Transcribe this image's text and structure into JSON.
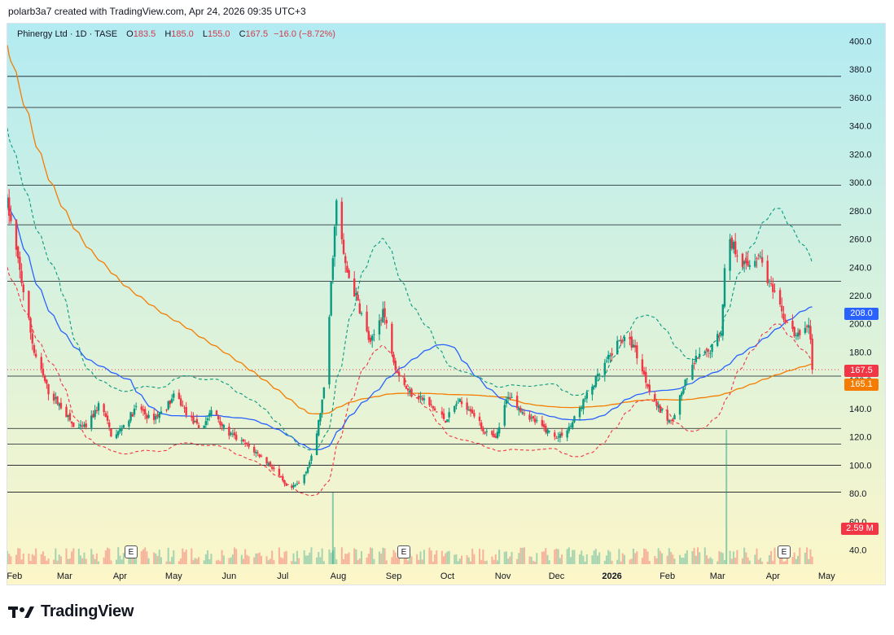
{
  "header": {
    "caption": "polarb3a7 created with TradingView.com, Apr 24, 2026 09:35 UTC+3"
  },
  "legend": {
    "symbol": "Phinergy Ltd · 1D · TASE",
    "open_label": "O",
    "open": "183.5",
    "high_label": "H",
    "high": "185.0",
    "low_label": "L",
    "low": "155.0",
    "close_label": "C",
    "close": "167.5",
    "change": "−16.0 (−8.72%)"
  },
  "tags": {
    "blue_ma": "208.0",
    "last_price": "167.5",
    "orange_ma": "165.1",
    "volume": "2.59 M"
  },
  "footer": {
    "brand": "TradingView"
  },
  "colors": {
    "up": "#089981",
    "down": "#f23645",
    "blue_ma": "#2962ff",
    "orange_ma": "#f57c00",
    "green_band": "#089981",
    "red_band": "#f23645",
    "last_price": "#f23645",
    "orange_tag": "#f57c00",
    "blue_tag": "#2962ff",
    "volume_tag": "#f23645"
  },
  "earnings_markers": [
    "E",
    "E",
    "E"
  ],
  "chart_data": {
    "type": "candlestick",
    "y_axis": {
      "min": 30,
      "max": 410,
      "ticks": [
        40,
        60,
        80,
        100,
        120,
        140,
        160,
        180,
        200,
        220,
        240,
        260,
        280,
        300,
        320,
        340,
        360,
        380,
        400
      ],
      "position": "right"
    },
    "x_labels": [
      "Feb",
      "Mar",
      "Apr",
      "May",
      "Jun",
      "Jul",
      "Aug",
      "Sep",
      "Oct",
      "Nov",
      "Dec",
      "2026",
      "Feb",
      "Mar",
      "Apr",
      "May"
    ],
    "x_label_dates": [
      "2025-02-01",
      "2025-03-01",
      "2025-04-01",
      "2025-05-01",
      "2025-06-01",
      "2025-07-01",
      "2025-08-01",
      "2025-09-01",
      "2025-10-01",
      "2025-11-01",
      "2025-12-01",
      "2026-01-01",
      "2026-02-01",
      "2026-03-01",
      "2026-04-01",
      "2026-05-01"
    ],
    "x_range": [
      "2025-01-28",
      "2026-05-05"
    ],
    "horizontal_levels": [
      375,
      353,
      298,
      270,
      230,
      163,
      126,
      115,
      100,
      81
    ],
    "close_series": [
      [
        "2025-01-28",
        285
      ],
      [
        "2025-02-05",
        230
      ],
      [
        "2025-02-12",
        180
      ],
      [
        "2025-02-20",
        152
      ],
      [
        "2025-02-28",
        140
      ],
      [
        "2025-03-07",
        125
      ],
      [
        "2025-03-14",
        128
      ],
      [
        "2025-03-21",
        145
      ],
      [
        "2025-03-28",
        118
      ],
      [
        "2025-04-04",
        130
      ],
      [
        "2025-04-11",
        142
      ],
      [
        "2025-04-18",
        132
      ],
      [
        "2025-04-25",
        138
      ],
      [
        "2025-05-02",
        150
      ],
      [
        "2025-05-09",
        135
      ],
      [
        "2025-05-16",
        125
      ],
      [
        "2025-05-23",
        140
      ],
      [
        "2025-05-30",
        124
      ],
      [
        "2025-06-06",
        118
      ],
      [
        "2025-06-13",
        112
      ],
      [
        "2025-06-20",
        105
      ],
      [
        "2025-06-27",
        96
      ],
      [
        "2025-07-04",
        82
      ],
      [
        "2025-07-11",
        88
      ],
      [
        "2025-07-18",
        108
      ],
      [
        "2025-07-25",
        160
      ],
      [
        "2025-07-29",
        250
      ],
      [
        "2025-07-31",
        285
      ],
      [
        "2025-08-05",
        240
      ],
      [
        "2025-08-12",
        215
      ],
      [
        "2025-08-19",
        185
      ],
      [
        "2025-08-26",
        210
      ],
      [
        "2025-09-02",
        170
      ],
      [
        "2025-09-09",
        152
      ],
      [
        "2025-09-16",
        148
      ],
      [
        "2025-09-23",
        140
      ],
      [
        "2025-09-30",
        132
      ],
      [
        "2025-10-07",
        145
      ],
      [
        "2025-10-14",
        140
      ],
      [
        "2025-10-21",
        125
      ],
      [
        "2025-10-28",
        118
      ],
      [
        "2025-11-04",
        150
      ],
      [
        "2025-11-11",
        140
      ],
      [
        "2025-11-18",
        132
      ],
      [
        "2025-11-25",
        125
      ],
      [
        "2025-12-02",
        120
      ],
      [
        "2025-12-09",
        128
      ],
      [
        "2025-12-16",
        145
      ],
      [
        "2025-12-23",
        160
      ],
      [
        "2025-12-30",
        175
      ],
      [
        "2026-01-06",
        190
      ],
      [
        "2026-01-13",
        185
      ],
      [
        "2026-01-20",
        160
      ],
      [
        "2026-01-27",
        140
      ],
      [
        "2026-02-03",
        130
      ],
      [
        "2026-02-10",
        155
      ],
      [
        "2026-02-17",
        175
      ],
      [
        "2026-02-24",
        180
      ],
      [
        "2026-03-03",
        195
      ],
      [
        "2026-03-06",
        260
      ],
      [
        "2026-03-10",
        255
      ],
      [
        "2026-03-17",
        240
      ],
      [
        "2026-03-24",
        250
      ],
      [
        "2026-03-31",
        225
      ],
      [
        "2026-04-07",
        205
      ],
      [
        "2026-04-14",
        190
      ],
      [
        "2026-04-21",
        200
      ],
      [
        "2026-04-24",
        167.5
      ]
    ],
    "volume_peaks": [
      [
        "2025-07-29",
        "large"
      ],
      [
        "2026-03-06",
        "very large"
      ]
    ],
    "indicators": [
      "orange moving average",
      "blue moving average",
      "green dashed upper band",
      "red dashed lower band"
    ]
  }
}
